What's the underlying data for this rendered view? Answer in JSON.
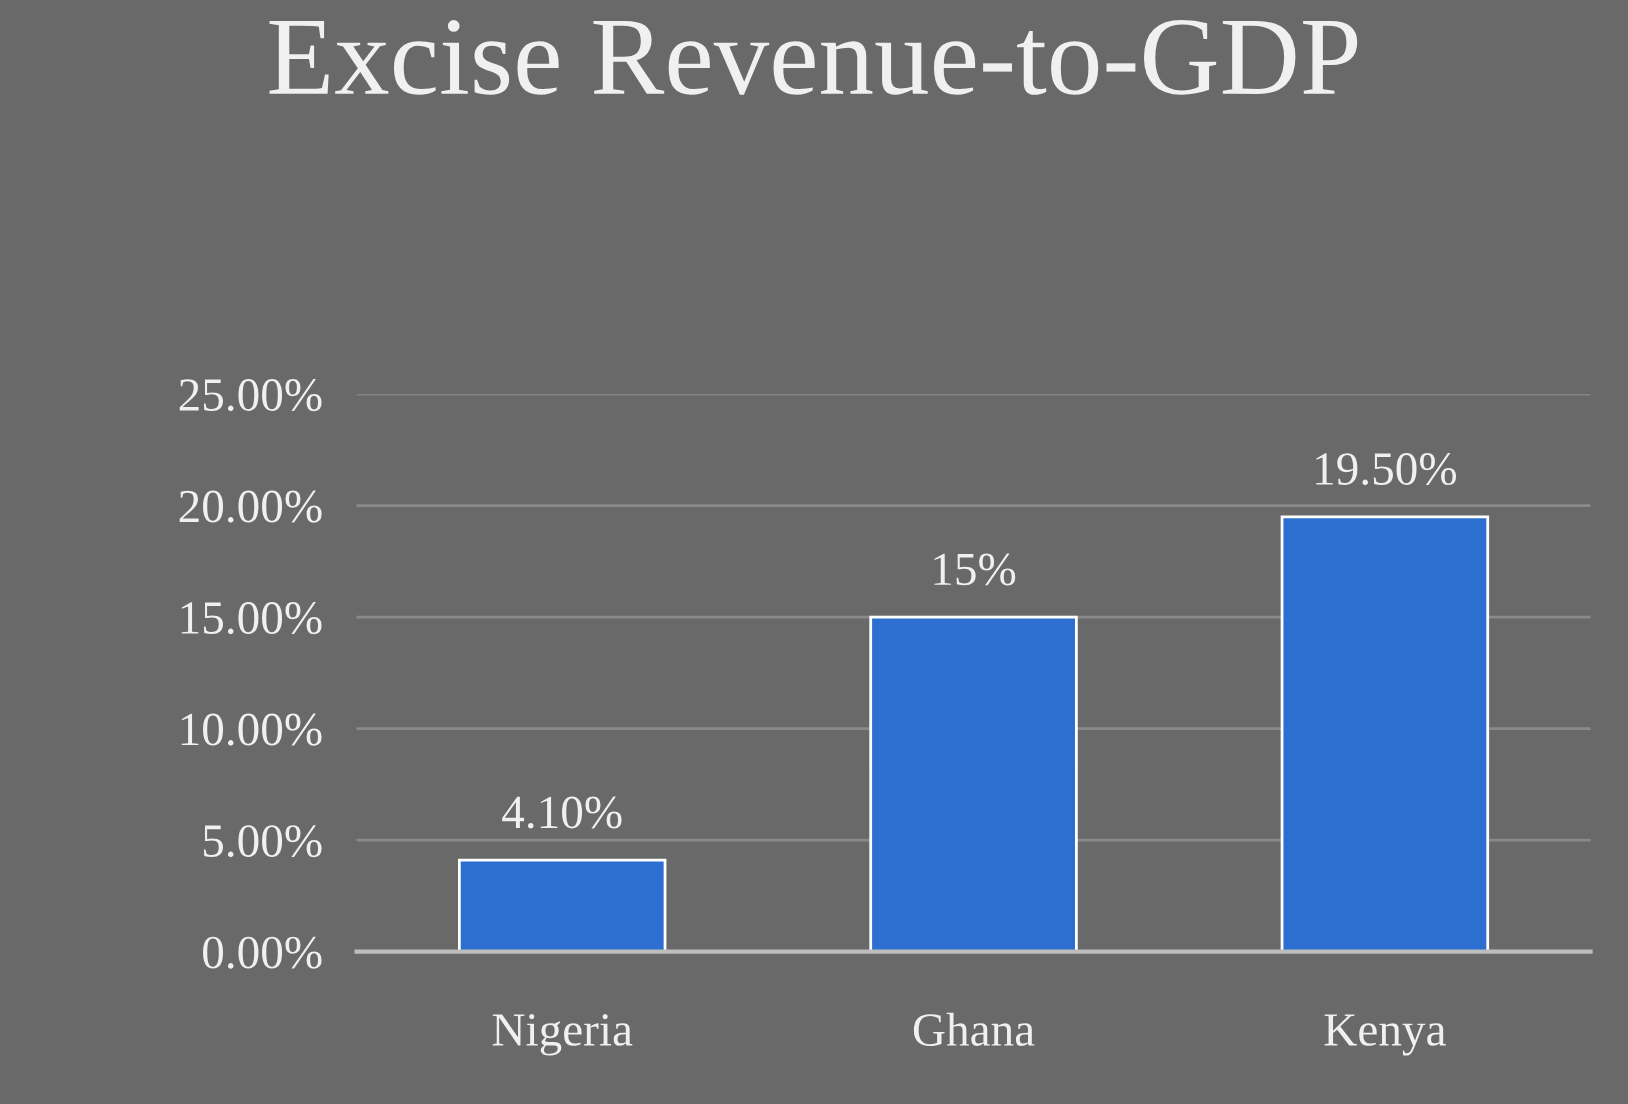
{
  "chart_data": {
    "type": "bar",
    "title": "Excise Revenue-to-GDP",
    "categories": [
      "Nigeria",
      "Ghana",
      "Kenya"
    ],
    "values": [
      4.1,
      15,
      19.5
    ],
    "value_labels": [
      "4.10%",
      "15%",
      "19.50%"
    ],
    "color": "#2c6fd1",
    "ylim": [
      0,
      25
    ],
    "yticks": [
      {
        "value": 0,
        "label": "0.00%"
      },
      {
        "value": 5,
        "label": "5.00%"
      },
      {
        "value": 10,
        "label": "10.00%"
      },
      {
        "value": 15,
        "label": "15.00%"
      },
      {
        "value": 20,
        "label": "20.00%"
      },
      {
        "value": 25,
        "label": "25.00%"
      }
    ],
    "grid": "y",
    "legend": false
  }
}
